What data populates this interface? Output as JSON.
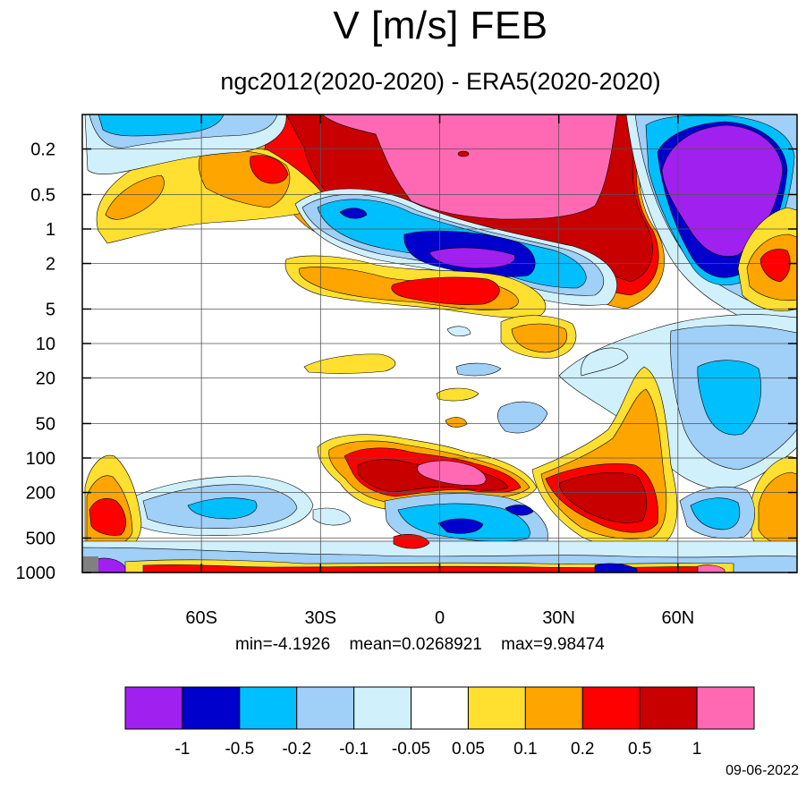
{
  "title": "V [m/s] FEB",
  "subtitle": "ngc2012(2020-2020) - ERA5(2020-2020)",
  "stats": {
    "min": "min=-4.1926",
    "mean": "mean=0.0268921",
    "max": "max=9.98474"
  },
  "date": "09-06-2022",
  "chart_data": {
    "type": "heatmap",
    "title": "V [m/s] FEB",
    "subtitle": "ngc2012(2020-2020) - ERA5(2020-2020)",
    "x_axis": {
      "range": [
        -90,
        90
      ],
      "ticks": [
        -60,
        -30,
        0,
        30,
        60
      ],
      "tick_labels": [
        "60S",
        "30S",
        "0",
        "30N",
        "60N"
      ]
    },
    "y_axis": {
      "scale": "log",
      "reversed": true,
      "range": [
        1000,
        0.1
      ],
      "ticks": [
        0.2,
        0.5,
        1,
        2,
        5,
        10,
        20,
        50,
        100,
        200,
        500,
        1000
      ],
      "tick_labels": [
        "0.2",
        "0.5",
        "1",
        "2",
        "5",
        "10",
        "20",
        "50",
        "100",
        "200",
        "500",
        "1000"
      ]
    },
    "grid": true,
    "colorbar": {
      "placement": "bottom",
      "levels": [
        "-1",
        "-0.5",
        "-0.2",
        "-0.1",
        "-0.05",
        "0.05",
        "0.1",
        "0.2",
        "0.5",
        "1"
      ],
      "colors": [
        "#a020f0",
        "#0000cd",
        "#00bfff",
        "#a0cff8",
        "#d0f0fc",
        "#ffffff",
        "#ffe030",
        "#ffa500",
        "#ff0000",
        "#c80000",
        "#ff69b4"
      ]
    },
    "features": [
      {
        "lat": 0,
        "level": 0.3,
        "sign": "positive",
        "peak_class": "1"
      },
      {
        "lat": 75,
        "level": 0.7,
        "sign": "negative",
        "peak_class": "-1"
      },
      {
        "lat": 0,
        "level": 2,
        "sign": "negative",
        "peak_class": "-1"
      },
      {
        "lat": -25,
        "level": 1,
        "sign": "negative",
        "peak_class": "-0.5"
      },
      {
        "lat": 5,
        "level": 4,
        "sign": "positive",
        "peak_class": "0.5"
      },
      {
        "lat": 85,
        "level": 3,
        "sign": "positive",
        "peak_class": "0.5"
      },
      {
        "lat": 68,
        "level": 30,
        "sign": "negative",
        "peak_class": "-0.2"
      },
      {
        "lat": 10,
        "level": 130,
        "sign": "positive",
        "peak_class": "1"
      },
      {
        "lat": -18,
        "level": 170,
        "sign": "positive",
        "peak_class": "0.5"
      },
      {
        "lat": 40,
        "level": 200,
        "sign": "positive",
        "peak_class": "0.5"
      },
      {
        "lat": -82,
        "level": 300,
        "sign": "positive",
        "peak_class": "0.5"
      },
      {
        "lat": 0,
        "level": 400,
        "sign": "negative",
        "peak_class": "-0.5"
      },
      {
        "lat": -60,
        "level": 300,
        "sign": "negative",
        "peak_class": "-0.2"
      }
    ]
  }
}
